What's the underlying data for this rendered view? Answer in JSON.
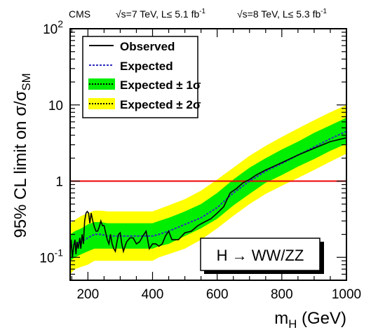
{
  "chart_data": {
    "type": "line",
    "header": {
      "experiment": "CMS",
      "run7": "√s=7 TeV, L≤ 5.1 fb",
      "run8": "√s=8 TeV, L≤ 5.3 fb",
      "lumi_exp": "-1"
    },
    "xlabel": {
      "main": "m",
      "sub": "H",
      "rest": " (GeV)"
    },
    "ylabel": {
      "main": "95% CL limit on σ/σ",
      "sub": "SM"
    },
    "xlim": [
      145,
      1000
    ],
    "ylim": [
      0.05,
      100
    ],
    "yscale": "log",
    "x_ticks": [
      "200",
      "400",
      "600",
      "800",
      "1000"
    ],
    "x_tick_values": [
      200,
      400,
      600,
      800,
      1000
    ],
    "y_ticks": [
      {
        "value": 100,
        "base": "10",
        "exp": "2"
      },
      {
        "value": 10,
        "base": "10",
        "exp": ""
      },
      {
        "value": 1,
        "base": "1",
        "exp": ""
      },
      {
        "value": 0.1,
        "base": "10",
        "exp": "-1"
      }
    ],
    "reference_line": {
      "value": 1,
      "color": "#ee0000"
    },
    "colors": {
      "one_sigma": "#00ee00",
      "two_sigma": "#ffff00",
      "observed": "#000000",
      "expected": "#2b2bbf",
      "frame": "#000000"
    },
    "legend_position": "top-left",
    "legend": [
      {
        "label": "Observed",
        "style": "observed"
      },
      {
        "label": "Expected",
        "style": "expected"
      },
      {
        "label": "Expected ± 1σ",
        "style": "one_sigma"
      },
      {
        "label": "Expected ± 2σ",
        "style": "two_sigma"
      }
    ],
    "annotation": "H → WW/ZZ",
    "series": [
      {
        "name": "Observed",
        "x": [
          145,
          148,
          152,
          156,
          160,
          163,
          166,
          170,
          175,
          178,
          182,
          186,
          190,
          194,
          198,
          202,
          206,
          210,
          215,
          220,
          225,
          230,
          235,
          240,
          245,
          250,
          255,
          260,
          265,
          270,
          275,
          280,
          285,
          290,
          295,
          300,
          305,
          310,
          315,
          320,
          330,
          340,
          350,
          360,
          370,
          380,
          390,
          400,
          410,
          420,
          430,
          440,
          450,
          460,
          480,
          500,
          520,
          540,
          560,
          580,
          600,
          620,
          640,
          660,
          680,
          700,
          720,
          750,
          780,
          800,
          850,
          900,
          950,
          1000
        ],
        "y": [
          0.12,
          0.17,
          0.1,
          0.14,
          0.17,
          0.11,
          0.16,
          0.13,
          0.18,
          0.13,
          0.2,
          0.15,
          0.3,
          0.38,
          0.4,
          0.38,
          0.28,
          0.38,
          0.3,
          0.25,
          0.22,
          0.22,
          0.25,
          0.3,
          0.26,
          0.26,
          0.21,
          0.17,
          0.15,
          0.2,
          0.15,
          0.13,
          0.12,
          0.16,
          0.2,
          0.21,
          0.15,
          0.12,
          0.14,
          0.16,
          0.18,
          0.18,
          0.15,
          0.16,
          0.19,
          0.22,
          0.13,
          0.15,
          0.15,
          0.14,
          0.15,
          0.19,
          0.22,
          0.17,
          0.17,
          0.21,
          0.22,
          0.26,
          0.29,
          0.32,
          0.38,
          0.46,
          0.7,
          0.8,
          0.95,
          1.05,
          1.2,
          1.4,
          1.6,
          1.75,
          2.2,
          2.7,
          3.3,
          3.7
        ]
      },
      {
        "name": "Expected",
        "x": [
          145,
          160,
          180,
          200,
          220,
          240,
          260,
          280,
          300,
          320,
          350,
          380,
          400,
          420,
          450,
          500,
          550,
          600,
          650,
          700,
          750,
          800,
          850,
          900,
          950,
          1000
        ],
        "y": [
          0.14,
          0.15,
          0.16,
          0.18,
          0.2,
          0.2,
          0.19,
          0.19,
          0.19,
          0.19,
          0.19,
          0.19,
          0.19,
          0.2,
          0.22,
          0.27,
          0.33,
          0.45,
          0.7,
          1.0,
          1.35,
          1.7,
          2.2,
          2.8,
          3.6,
          4.5
        ]
      },
      {
        "name": "Expected ± 1σ",
        "x": [
          145,
          160,
          180,
          200,
          220,
          240,
          260,
          280,
          300,
          320,
          350,
          380,
          400,
          420,
          450,
          500,
          550,
          600,
          650,
          700,
          750,
          800,
          850,
          900,
          950,
          1000
        ],
        "low": [
          0.09,
          0.1,
          0.11,
          0.12,
          0.13,
          0.13,
          0.13,
          0.13,
          0.13,
          0.13,
          0.13,
          0.13,
          0.13,
          0.14,
          0.15,
          0.19,
          0.24,
          0.32,
          0.48,
          0.68,
          0.95,
          1.2,
          1.55,
          1.95,
          2.5,
          3.1
        ],
        "high": [
          0.2,
          0.22,
          0.24,
          0.27,
          0.29,
          0.29,
          0.28,
          0.28,
          0.28,
          0.28,
          0.28,
          0.28,
          0.28,
          0.3,
          0.33,
          0.4,
          0.5,
          0.7,
          1.05,
          1.5,
          2.0,
          2.6,
          3.3,
          4.3,
          5.4,
          6.8
        ]
      },
      {
        "name": "Expected ± 2σ",
        "x": [
          145,
          160,
          180,
          200,
          220,
          240,
          260,
          280,
          300,
          320,
          350,
          380,
          400,
          420,
          450,
          500,
          550,
          600,
          650,
          700,
          750,
          800,
          850,
          900,
          950,
          1000
        ],
        "low": [
          0.06,
          0.07,
          0.075,
          0.08,
          0.09,
          0.09,
          0.09,
          0.09,
          0.09,
          0.09,
          0.09,
          0.09,
          0.09,
          0.1,
          0.11,
          0.13,
          0.17,
          0.24,
          0.35,
          0.5,
          0.68,
          0.87,
          1.1,
          1.4,
          1.8,
          2.3
        ],
        "high": [
          0.28,
          0.31,
          0.35,
          0.38,
          0.41,
          0.41,
          0.4,
          0.4,
          0.4,
          0.4,
          0.4,
          0.4,
          0.4,
          0.43,
          0.48,
          0.58,
          0.75,
          1.05,
          1.5,
          2.15,
          2.9,
          3.8,
          4.9,
          6.3,
          8.0,
          10.0
        ]
      }
    ]
  }
}
